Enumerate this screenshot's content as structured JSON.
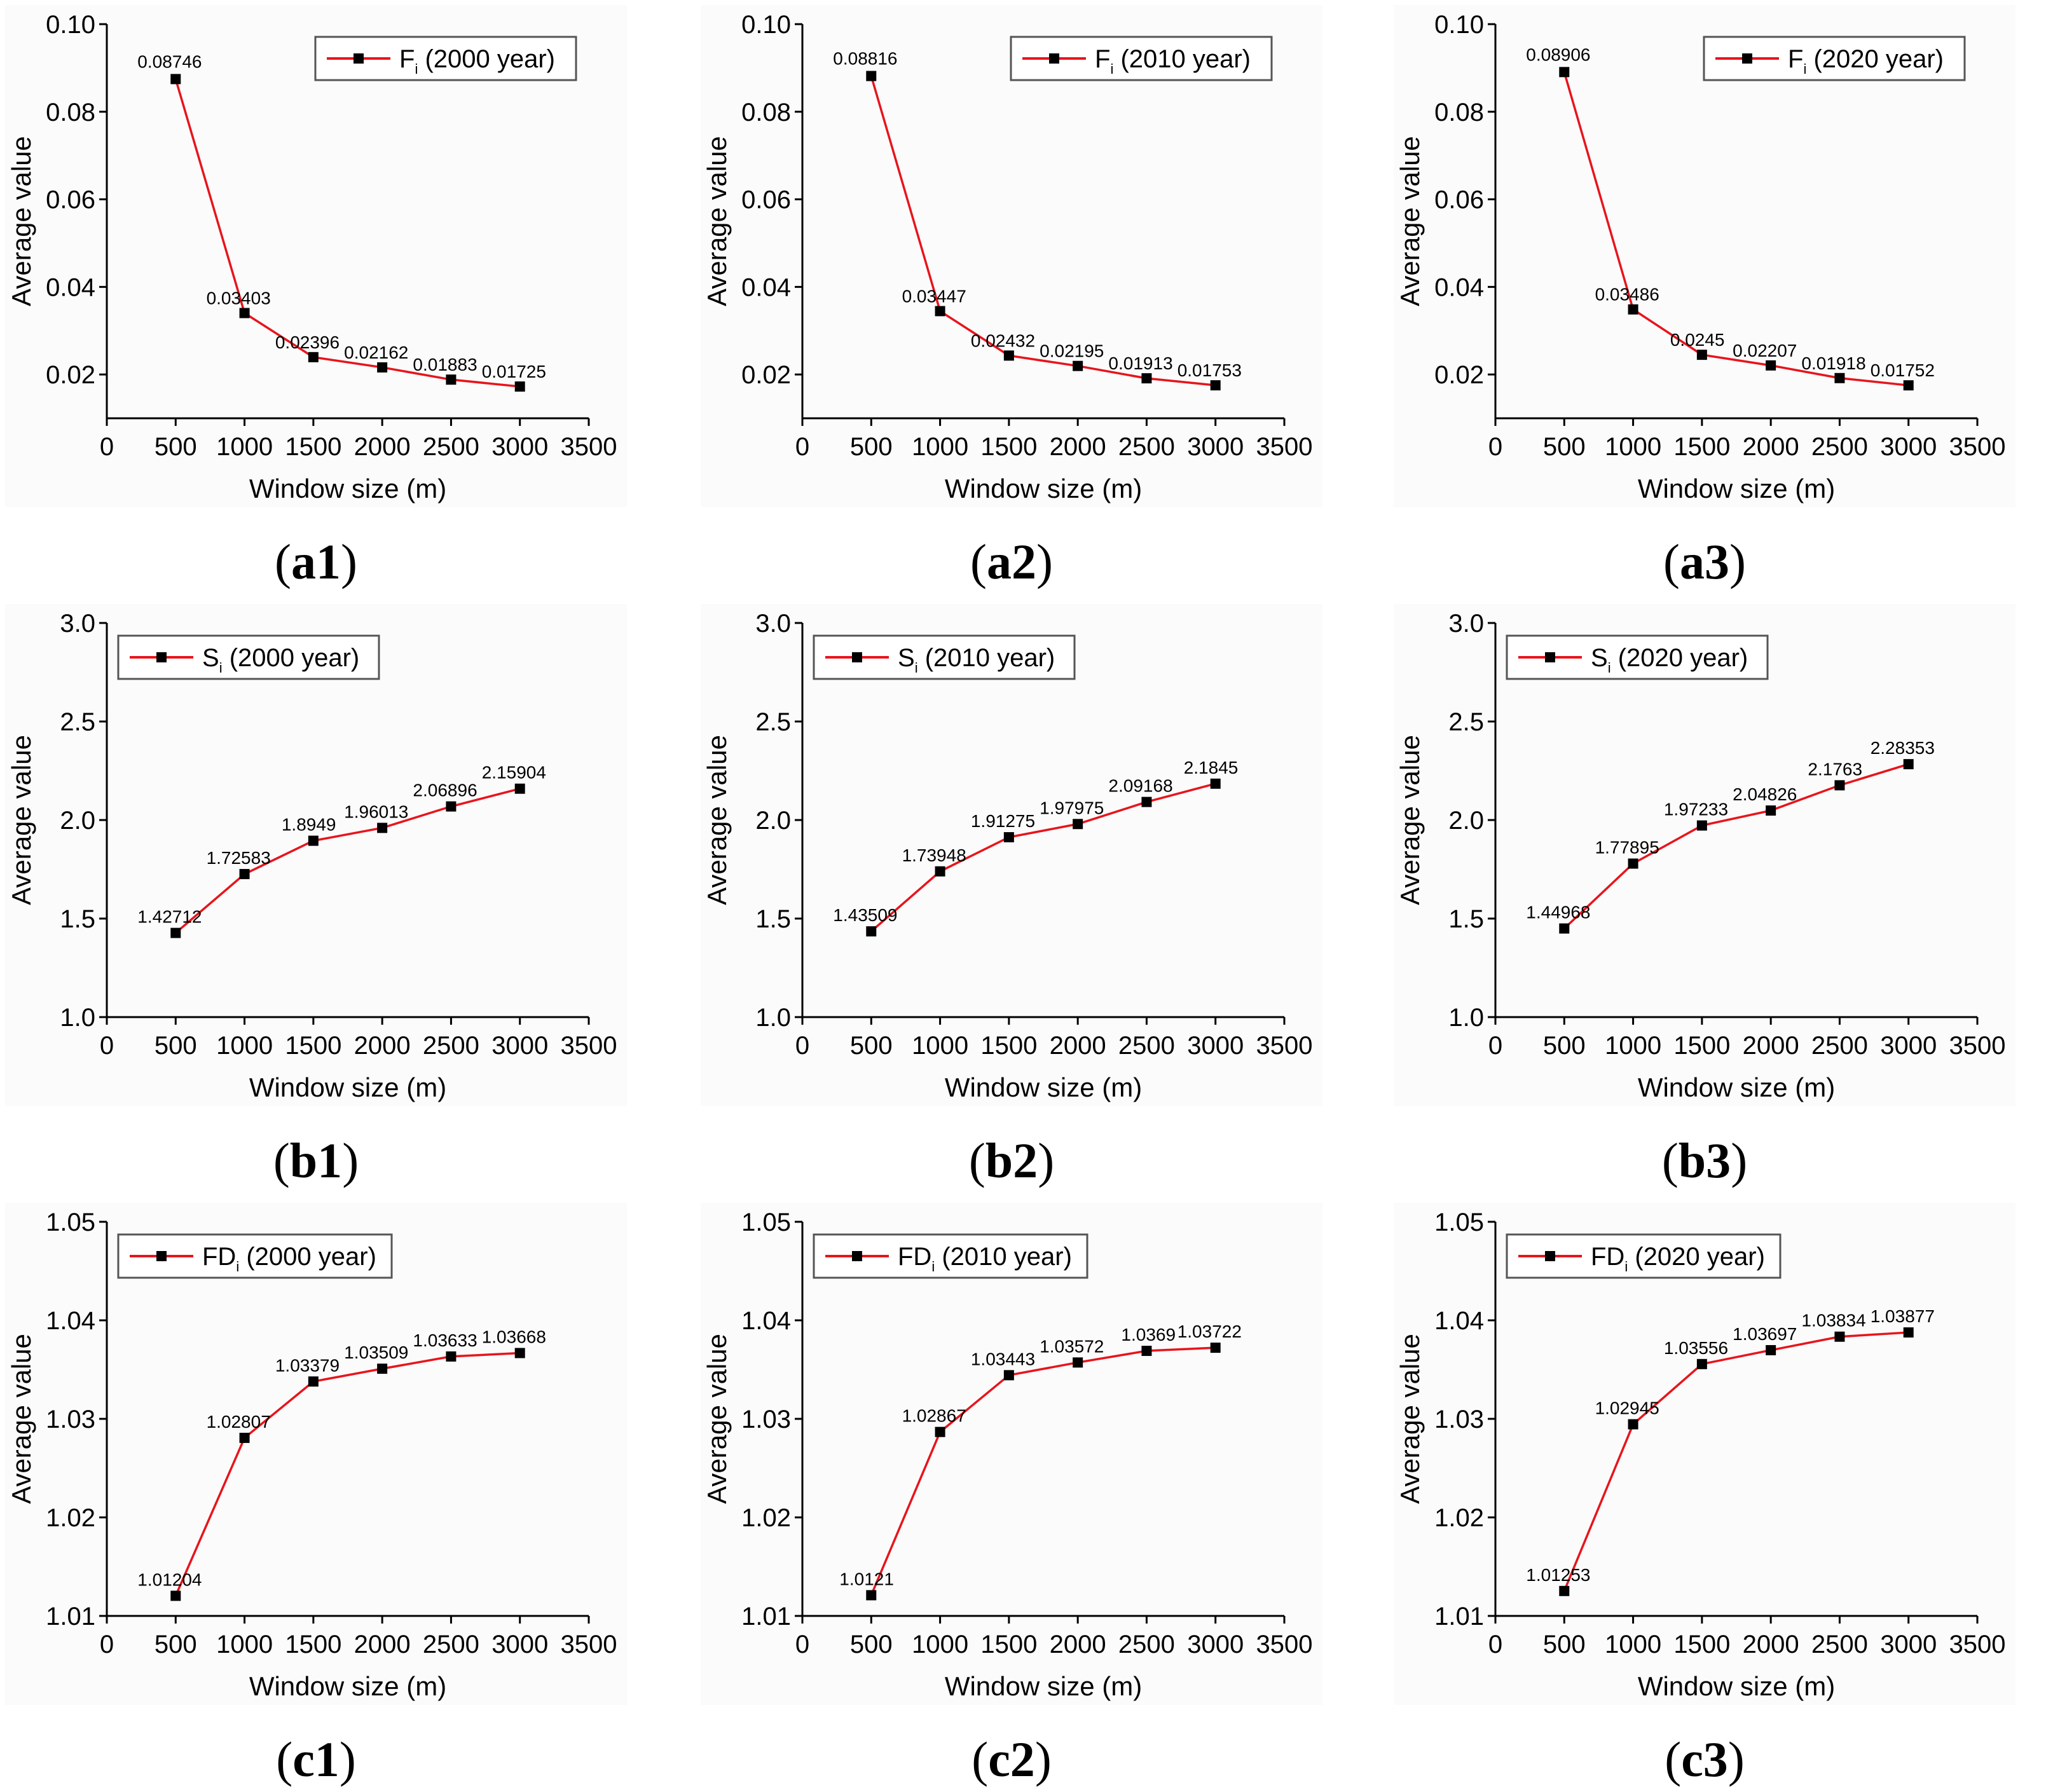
{
  "colors": {
    "series": "#e8141b",
    "marker": "#000000",
    "axis": "#000000"
  },
  "chart_data": [
    {
      "panel": "(a1)",
      "type": "line",
      "legend": {
        "main": "F",
        "sub": "i",
        "suffix": " (2000 year)"
      },
      "xlabel": "Window size (m)",
      "ylabel": "Average value",
      "xlim": [
        0,
        3500
      ],
      "ylim": [
        0.01,
        0.1
      ],
      "xticks": [
        0,
        500,
        1000,
        1500,
        2000,
        2500,
        3000,
        3500
      ],
      "yticks": [
        0.02,
        0.04,
        0.06,
        0.08,
        0.1
      ],
      "ytick_labels": [
        "0.02",
        "0.04",
        "0.06",
        "0.08",
        "0.10"
      ],
      "x": [
        500,
        1000,
        1500,
        2000,
        2500,
        3000
      ],
      "values": [
        0.08746,
        0.03403,
        0.02396,
        0.02162,
        0.01883,
        0.01725
      ],
      "labels": [
        "0.08746",
        "0.03403",
        "0.02396",
        "0.02162",
        "0.01883",
        "0.01725"
      ]
    },
    {
      "panel": "(a2)",
      "type": "line",
      "legend": {
        "main": "F",
        "sub": "i",
        "suffix": " (2010 year)"
      },
      "xlabel": "Window size (m)",
      "ylabel": "Average value",
      "xlim": [
        0,
        3500
      ],
      "ylim": [
        0.01,
        0.1
      ],
      "xticks": [
        0,
        500,
        1000,
        1500,
        2000,
        2500,
        3000,
        3500
      ],
      "yticks": [
        0.02,
        0.04,
        0.06,
        0.08,
        0.1
      ],
      "ytick_labels": [
        "0.02",
        "0.04",
        "0.06",
        "0.08",
        "0.10"
      ],
      "x": [
        500,
        1000,
        1500,
        2000,
        2500,
        3000
      ],
      "values": [
        0.08816,
        0.03447,
        0.02432,
        0.02195,
        0.01913,
        0.01753
      ],
      "labels": [
        "0.08816",
        "0.03447",
        "0.02432",
        "0.02195",
        "0.01913",
        "0.01753"
      ]
    },
    {
      "panel": "(a3)",
      "type": "line",
      "legend": {
        "main": "F",
        "sub": "i",
        "suffix": " (2020 year)"
      },
      "xlabel": "Window size (m)",
      "ylabel": "Average value",
      "xlim": [
        0,
        3500
      ],
      "ylim": [
        0.01,
        0.1
      ],
      "xticks": [
        0,
        500,
        1000,
        1500,
        2000,
        2500,
        3000,
        3500
      ],
      "yticks": [
        0.02,
        0.04,
        0.06,
        0.08,
        0.1
      ],
      "ytick_labels": [
        "0.02",
        "0.04",
        "0.06",
        "0.08",
        "0.10"
      ],
      "x": [
        500,
        1000,
        1500,
        2000,
        2500,
        3000
      ],
      "values": [
        0.08906,
        0.03486,
        0.0245,
        0.02207,
        0.01918,
        0.01752
      ],
      "labels": [
        "0.08906",
        "0.03486",
        "0.0245",
        "0.02207",
        "0.01918",
        "0.01752"
      ]
    },
    {
      "panel": "(b1)",
      "type": "line",
      "legend": {
        "main": "S",
        "sub": "i",
        "suffix": " (2000 year)"
      },
      "xlabel": "Window size (m)",
      "ylabel": "Average value",
      "xlim": [
        0,
        3500
      ],
      "ylim": [
        1.0,
        3.0
      ],
      "xticks": [
        0,
        500,
        1000,
        1500,
        2000,
        2500,
        3000,
        3500
      ],
      "yticks": [
        1.0,
        1.5,
        2.0,
        2.5,
        3.0
      ],
      "ytick_labels": [
        "1.0",
        "1.5",
        "2.0",
        "2.5",
        "3.0"
      ],
      "x": [
        500,
        1000,
        1500,
        2000,
        2500,
        3000
      ],
      "values": [
        1.42712,
        1.72583,
        1.8949,
        1.96013,
        2.06896,
        2.15904
      ],
      "labels": [
        "1.42712",
        "1.72583",
        "1.8949",
        "1.96013",
        "2.06896",
        "2.15904"
      ]
    },
    {
      "panel": "(b2)",
      "type": "line",
      "legend": {
        "main": "S",
        "sub": "i",
        "suffix": " (2010 year)"
      },
      "xlabel": "Window size (m)",
      "ylabel": "Average value",
      "xlim": [
        0,
        3500
      ],
      "ylim": [
        1.0,
        3.0
      ],
      "xticks": [
        0,
        500,
        1000,
        1500,
        2000,
        2500,
        3000,
        3500
      ],
      "yticks": [
        1.0,
        1.5,
        2.0,
        2.5,
        3.0
      ],
      "ytick_labels": [
        "1.0",
        "1.5",
        "2.0",
        "2.5",
        "3.0"
      ],
      "x": [
        500,
        1000,
        1500,
        2000,
        2500,
        3000
      ],
      "values": [
        1.43509,
        1.73948,
        1.91275,
        1.97975,
        2.09168,
        2.1845
      ],
      "labels": [
        "1.43509",
        "1.73948",
        "1.91275",
        "1.97975",
        "2.09168",
        "2.1845"
      ]
    },
    {
      "panel": "(b3)",
      "type": "line",
      "legend": {
        "main": "S",
        "sub": "i",
        "suffix": " (2020 year)"
      },
      "xlabel": "Window size (m)",
      "ylabel": "Average value",
      "xlim": [
        0,
        3500
      ],
      "ylim": [
        1.0,
        3.0
      ],
      "xticks": [
        0,
        500,
        1000,
        1500,
        2000,
        2500,
        3000,
        3500
      ],
      "yticks": [
        1.0,
        1.5,
        2.0,
        2.5,
        3.0
      ],
      "ytick_labels": [
        "1.0",
        "1.5",
        "2.0",
        "2.5",
        "3.0"
      ],
      "x": [
        500,
        1000,
        1500,
        2000,
        2500,
        3000
      ],
      "values": [
        1.44968,
        1.77895,
        1.97233,
        2.04826,
        2.1763,
        2.28353
      ],
      "labels": [
        "1.44968",
        "1.77895",
        "1.97233",
        "2.04826",
        "2.1763",
        "2.28353"
      ]
    },
    {
      "panel": "(c1)",
      "type": "line",
      "legend": {
        "main": "FD",
        "sub": "i",
        "suffix": " (2000 year)"
      },
      "xlabel": "Window size (m)",
      "ylabel": "Average value",
      "xlim": [
        0,
        3500
      ],
      "ylim": [
        1.01,
        1.05
      ],
      "xticks": [
        0,
        500,
        1000,
        1500,
        2000,
        2500,
        3000,
        3500
      ],
      "yticks": [
        1.01,
        1.02,
        1.03,
        1.04,
        1.05
      ],
      "ytick_labels": [
        "1.01",
        "1.02",
        "1.03",
        "1.04",
        "1.05"
      ],
      "x": [
        500,
        1000,
        1500,
        2000,
        2500,
        3000
      ],
      "values": [
        1.01204,
        1.02807,
        1.03379,
        1.03509,
        1.03633,
        1.03668
      ],
      "labels": [
        "1.01204",
        "1.02807",
        "1.03379",
        "1.03509",
        "1.03633",
        "1.03668"
      ]
    },
    {
      "panel": "(c2)",
      "type": "line",
      "legend": {
        "main": "FD",
        "sub": "i",
        "suffix": " (2010 year)"
      },
      "xlabel": "Window size (m)",
      "ylabel": "Average value",
      "xlim": [
        0,
        3500
      ],
      "ylim": [
        1.01,
        1.05
      ],
      "xticks": [
        0,
        500,
        1000,
        1500,
        2000,
        2500,
        3000,
        3500
      ],
      "yticks": [
        1.01,
        1.02,
        1.03,
        1.04,
        1.05
      ],
      "ytick_labels": [
        "1.01",
        "1.02",
        "1.03",
        "1.04",
        "1.05"
      ],
      "x": [
        500,
        1000,
        1500,
        2000,
        2500,
        3000
      ],
      "values": [
        1.0121,
        1.02867,
        1.03443,
        1.03572,
        1.0369,
        1.03722
      ],
      "labels": [
        "1.0121",
        "1.02867",
        "1.03443",
        "1.03572",
        "1.0369",
        "1.03722"
      ]
    },
    {
      "panel": "(c3)",
      "type": "line",
      "legend": {
        "main": "FD",
        "sub": "i",
        "suffix": " (2020 year)"
      },
      "xlabel": "Window size (m)",
      "ylabel": "Average value",
      "xlim": [
        0,
        3500
      ],
      "ylim": [
        1.01,
        1.05
      ],
      "xticks": [
        0,
        500,
        1000,
        1500,
        2000,
        2500,
        3000,
        3500
      ],
      "yticks": [
        1.01,
        1.02,
        1.03,
        1.04,
        1.05
      ],
      "ytick_labels": [
        "1.01",
        "1.02",
        "1.03",
        "1.04",
        "1.05"
      ],
      "x": [
        500,
        1000,
        1500,
        2000,
        2500,
        3000
      ],
      "values": [
        1.01253,
        1.02945,
        1.03556,
        1.03697,
        1.03834,
        1.03877
      ],
      "labels": [
        "1.01253",
        "1.02945",
        "1.03556",
        "1.03697",
        "1.03834",
        "1.03877"
      ]
    }
  ]
}
